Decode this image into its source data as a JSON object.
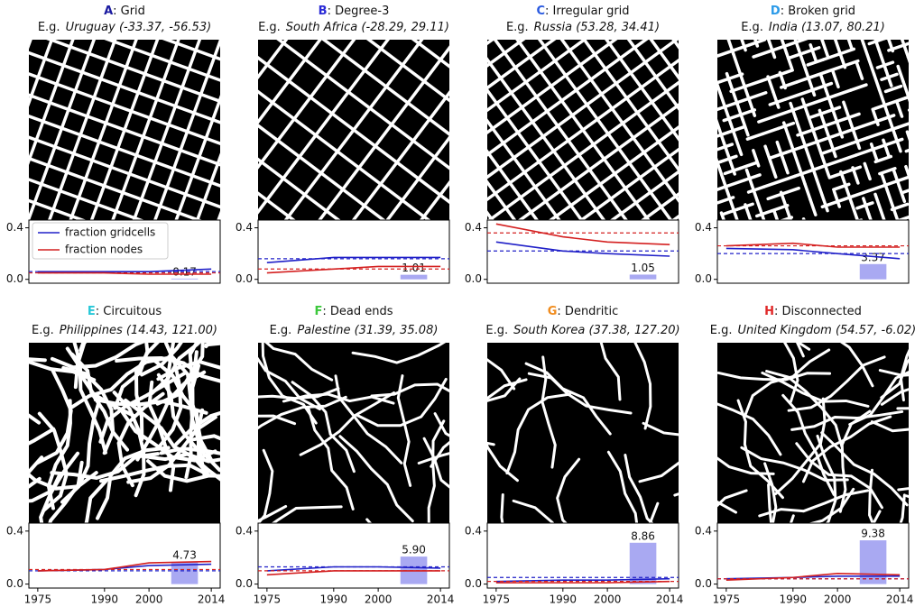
{
  "chart_data": [
    {
      "type": "line",
      "letter": "A",
      "letter_color": "#1a1aa0",
      "title": ": Grid",
      "example_prefix": "E.g.",
      "example": "Uruguay (-33.37, -56.53)",
      "x": [
        1975,
        1990,
        2000,
        2014
      ],
      "xlim": [
        1973,
        2016
      ],
      "ylim": [
        -0.03,
        0.46
      ],
      "yticks": [
        {
          "value": 0,
          "label": "0.0"
        },
        0.4
      ],
      "y2lim": [
        -0.85,
        13.07
      ],
      "legend": "upper left",
      "series": [
        {
          "name": "fraction gridcells",
          "color": "#2020c8",
          "values": [
            0.06,
            0.06,
            0.06,
            0.08
          ],
          "reference": 0.06
        },
        {
          "name": "fraction nodes",
          "color": "#d42020",
          "values": [
            0.05,
            0.05,
            0.04,
            0.04
          ],
          "reference": 0.05
        }
      ],
      "bar": {
        "x": [
          2005,
          2011
        ],
        "color": "#a9a9f2",
        "axis": "y2",
        "values": [
          0.17
        ]
      }
    },
    {
      "type": "line",
      "letter": "B",
      "letter_color": "#2b2bd6",
      "title": ": Degree-3",
      "example_prefix": "E.g.",
      "example": "South Africa (-28.29, 29.11)",
      "x": [
        1975,
        1990,
        2000,
        2014
      ],
      "xlim": [
        1973,
        2016
      ],
      "ylim": [
        -0.03,
        0.46
      ],
      "yticks": [
        {
          "value": 0,
          "label": "0.0"
        },
        0.4
      ],
      "y2lim": [
        -0.85,
        13.07
      ],
      "series": [
        {
          "color": "#2020c8",
          "values": [
            0.13,
            0.17,
            0.17,
            0.17
          ],
          "reference": 0.16
        },
        {
          "color": "#d42020",
          "values": [
            0.05,
            0.08,
            0.1,
            0.1
          ],
          "reference": 0.08
        }
      ],
      "bar": {
        "x": [
          2005,
          2011
        ],
        "color": "#a9a9f2",
        "axis": "y2",
        "values": [
          1.01
        ]
      }
    },
    {
      "type": "line",
      "letter": "C",
      "letter_color": "#2a5ae0",
      "title": ": Irregular grid",
      "example_prefix": "E.g.",
      "example": "Russia (53.28, 34.41)",
      "x": [
        1975,
        1990,
        2000,
        2014
      ],
      "xlim": [
        1973,
        2016
      ],
      "ylim": [
        -0.03,
        0.46
      ],
      "yticks": [
        {
          "value": 0,
          "label": "0.0"
        },
        0.4
      ],
      "y2lim": [
        -0.85,
        13.07
      ],
      "series": [
        {
          "color": "#2020c8",
          "values": [
            0.29,
            0.22,
            0.2,
            0.18
          ],
          "reference": 0.22
        },
        {
          "color": "#d42020",
          "values": [
            0.43,
            0.33,
            0.29,
            0.27
          ],
          "reference": 0.36
        }
      ],
      "bar": {
        "x": [
          2005,
          2011
        ],
        "color": "#a9a9f2",
        "axis": "y2",
        "values": [
          1.05
        ]
      }
    },
    {
      "type": "line",
      "letter": "D",
      "letter_color": "#2a9ae8",
      "title": ": Broken grid",
      "example_prefix": "E.g.",
      "example": "India (13.07, 80.21)",
      "x": [
        1975,
        1990,
        2000,
        2014
      ],
      "xlim": [
        1973,
        2016
      ],
      "ylim": [
        -0.03,
        0.46
      ],
      "yticks": [
        {
          "value": 0,
          "label": "0.0"
        },
        0.4
      ],
      "y2lim": [
        -0.85,
        13.07
      ],
      "series": [
        {
          "color": "#2020c8",
          "values": [
            0.24,
            0.23,
            0.2,
            0.16
          ],
          "reference": 0.2
        },
        {
          "color": "#d42020",
          "values": [
            0.26,
            0.28,
            0.25,
            0.25
          ],
          "reference": 0.26
        }
      ],
      "bar": {
        "x": [
          2005,
          2011
        ],
        "color": "#a9a9f2",
        "axis": "y2",
        "values": [
          3.37
        ]
      }
    },
    {
      "type": "line",
      "letter": "E",
      "letter_color": "#28c8d8",
      "title": ": Circuitous",
      "example_prefix": "E.g.",
      "example": "Philippines (14.43, 121.00)",
      "x": [
        1975,
        1990,
        2000,
        2014
      ],
      "xlim": [
        1973,
        2016
      ],
      "xticks": [
        1975,
        1990,
        2000,
        2014
      ],
      "ylim": [
        -0.03,
        0.46
      ],
      "yticks": [
        {
          "value": 0,
          "label": "0.0"
        },
        0.4
      ],
      "y2lim": [
        -0.85,
        13.07
      ],
      "series": [
        {
          "color": "#2020c8",
          "values": [
            0.1,
            0.11,
            0.14,
            0.15
          ],
          "reference": 0.1
        },
        {
          "color": "#d42020",
          "values": [
            0.1,
            0.11,
            0.16,
            0.17
          ],
          "reference": 0.11
        }
      ],
      "bar": {
        "x": [
          2005,
          2011
        ],
        "color": "#a9a9f2",
        "axis": "y2",
        "values": [
          4.73
        ]
      }
    },
    {
      "type": "line",
      "letter": "F",
      "letter_color": "#3cc83c",
      "title": ": Dead ends",
      "example_prefix": "E.g.",
      "example": "Palestine (31.39, 35.08)",
      "x": [
        1975,
        1990,
        2000,
        2014
      ],
      "xlim": [
        1973,
        2016
      ],
      "xticks": [
        1975,
        1990,
        2000,
        2014
      ],
      "ylim": [
        -0.03,
        0.46
      ],
      "yticks": [
        {
          "value": 0,
          "label": "0.0"
        },
        0.4
      ],
      "y2lim": [
        -0.85,
        13.07
      ],
      "series": [
        {
          "color": "#2020c8",
          "values": [
            0.1,
            0.13,
            0.13,
            0.12
          ],
          "reference": 0.13
        },
        {
          "color": "#d42020",
          "values": [
            0.07,
            0.1,
            0.1,
            0.1
          ],
          "reference": 0.1
        }
      ],
      "bar": {
        "x": [
          2005,
          2011
        ],
        "color": "#a9a9f2",
        "axis": "y2",
        "values": [
          5.9
        ],
        "value_labels": [
          "5.90"
        ]
      }
    },
    {
      "type": "line",
      "letter": "G",
      "letter_color": "#f08c1e",
      "title": ": Dendritic",
      "example_prefix": "E.g.",
      "example": "South Korea (37.38, 127.20)",
      "x": [
        1975,
        1990,
        2000,
        2014
      ],
      "xlim": [
        1973,
        2016
      ],
      "xticks": [
        1975,
        1990,
        2000,
        2014
      ],
      "ylim": [
        -0.03,
        0.46
      ],
      "yticks": [
        {
          "value": 0,
          "label": "0.0"
        },
        0.4
      ],
      "y2lim": [
        -0.85,
        13.07
      ],
      "series": [
        {
          "color": "#2020c8",
          "values": [
            0.02,
            0.03,
            0.03,
            0.04
          ],
          "reference": 0.05
        },
        {
          "color": "#d42020",
          "values": [
            0.01,
            0.01,
            0.01,
            0.02
          ],
          "reference": 0.02
        }
      ],
      "bar": {
        "x": [
          2005,
          2011
        ],
        "color": "#a9a9f2",
        "axis": "y2",
        "values": [
          8.86
        ]
      }
    },
    {
      "type": "line",
      "letter": "H",
      "letter_color": "#e02828",
      "title": ": Disconnected",
      "example_prefix": "E.g.",
      "example": "United Kingdom (54.57, -6.02)",
      "x": [
        1975,
        1990,
        2000,
        2014
      ],
      "xlim": [
        1973,
        2016
      ],
      "xticks": [
        1975,
        1990,
        2000,
        2014
      ],
      "ylim": [
        -0.03,
        0.46
      ],
      "yticks": [
        {
          "value": 0,
          "label": "0.0"
        },
        0.4
      ],
      "y2lim": [
        -0.85,
        13.07
      ],
      "series": [
        {
          "color": "#2020c8",
          "values": [
            0.04,
            0.05,
            0.06,
            0.06
          ],
          "reference": 0.04
        },
        {
          "color": "#d42020",
          "values": [
            0.03,
            0.05,
            0.08,
            0.07
          ],
          "reference": 0.04
        }
      ],
      "bar": {
        "x": [
          2005,
          2011
        ],
        "color": "#a9a9f2",
        "axis": "y2",
        "values": [
          9.38
        ]
      }
    }
  ]
}
